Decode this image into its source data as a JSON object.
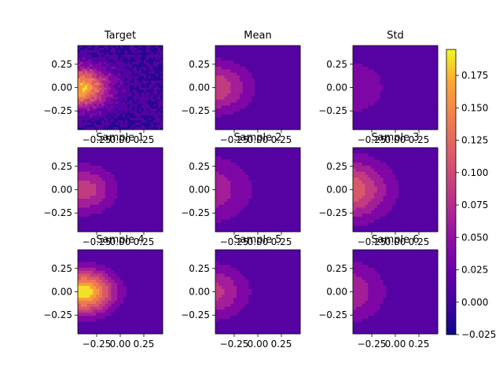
{
  "chart_data": {
    "type": "heatmap",
    "colormap": "plasma",
    "colorbar": {
      "min": -0.025,
      "max": 0.195,
      "ticks": [
        "0.175",
        "0.150",
        "0.125",
        "0.100",
        "0.075",
        "0.050",
        "0.025",
        "0.000",
        "−0.025"
      ],
      "tick_values": [
        0.175,
        0.15,
        0.125,
        0.1,
        0.075,
        0.05,
        0.025,
        0.0,
        -0.025
      ]
    },
    "xlim": [
      -0.45,
      0.45
    ],
    "ylim": [
      -0.45,
      0.45
    ],
    "x_ticks": [
      "−0.25",
      "0.00",
      "0.25"
    ],
    "x_tick_values": [
      -0.25,
      0.0,
      0.25
    ],
    "y_ticks": [
      "0.25",
      "0.00",
      "−0.25"
    ],
    "y_tick_values": [
      0.25,
      0.0,
      -0.25
    ],
    "panels": [
      {
        "title": "Target",
        "peak": 0.175,
        "center_x": -0.42,
        "spread": 0.3,
        "noise": true
      },
      {
        "title": "Mean",
        "peak": 0.095,
        "center_x": -0.45,
        "spread": 0.38,
        "noise": false
      },
      {
        "title": "Std",
        "peak": 0.05,
        "center_x": -0.5,
        "spread": 0.45,
        "noise": false
      },
      {
        "title": "Sample 1",
        "peak": 0.09,
        "center_x": -0.4,
        "spread": 0.35,
        "noise": false
      },
      {
        "title": "Sample 2",
        "peak": 0.07,
        "center_x": -0.55,
        "spread": 0.5,
        "noise": false
      },
      {
        "title": "Sample 3",
        "peak": 0.12,
        "center_x": -0.5,
        "spread": 0.45,
        "noise": false
      },
      {
        "title": "Sample 4",
        "peak": 0.19,
        "center_x": -0.38,
        "spread": 0.32,
        "noise": false
      },
      {
        "title": "Sample 5",
        "peak": 0.085,
        "center_x": -0.5,
        "spread": 0.4,
        "noise": false
      },
      {
        "title": "Sample 6",
        "peak": 0.075,
        "center_x": -0.55,
        "spread": 0.45,
        "noise": false
      }
    ]
  }
}
